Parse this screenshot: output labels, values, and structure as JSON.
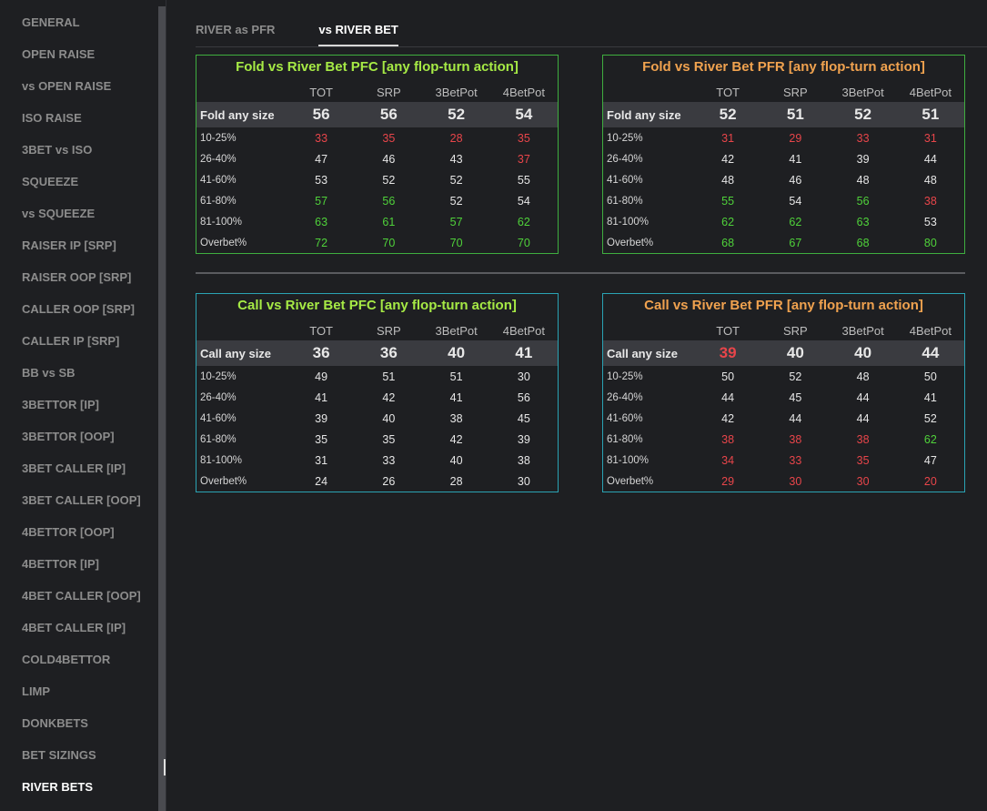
{
  "sidebar": {
    "items": [
      {
        "label": "GENERAL",
        "active": false
      },
      {
        "label": "OPEN RAISE",
        "active": false
      },
      {
        "label": "vs OPEN RAISE",
        "active": false
      },
      {
        "label": "ISO RAISE",
        "active": false
      },
      {
        "label": "3BET vs ISO",
        "active": false
      },
      {
        "label": "SQUEEZE",
        "active": false
      },
      {
        "label": "vs SQUEEZE",
        "active": false
      },
      {
        "label": "RAISER IP [SRP]",
        "active": false
      },
      {
        "label": "RAISER OOP [SRP]",
        "active": false
      },
      {
        "label": "CALLER OOP [SRP]",
        "active": false
      },
      {
        "label": "CALLER IP [SRP]",
        "active": false
      },
      {
        "label": "BB vs SB",
        "active": false
      },
      {
        "label": "3BETTOR [IP]",
        "active": false
      },
      {
        "label": "3BETTOR [OOP]",
        "active": false
      },
      {
        "label": "3BET CALLER [IP]",
        "active": false
      },
      {
        "label": "3BET CALLER [OOP]",
        "active": false
      },
      {
        "label": "4BETTOR [OOP]",
        "active": false
      },
      {
        "label": "4BETTOR [IP]",
        "active": false
      },
      {
        "label": "4BET CALLER [OOP]",
        "active": false
      },
      {
        "label": "4BET CALLER [IP]",
        "active": false
      },
      {
        "label": "COLD4BETTOR",
        "active": false
      },
      {
        "label": "LIMP",
        "active": false
      },
      {
        "label": "DONKBETS",
        "active": false
      },
      {
        "label": "BET SIZINGS",
        "active": false
      },
      {
        "label": "RIVER BETS",
        "active": true
      }
    ]
  },
  "tabs": [
    {
      "label": "RIVER as PFR",
      "active": false
    },
    {
      "label": "vs RIVER BET",
      "active": true
    }
  ],
  "colors": {
    "green_border": "#3fae3f",
    "teal_border": "#2aa3b4",
    "green_title": "#a6ea45",
    "orange_title": "#f0a24f",
    "red_value": "#e8454a",
    "green_value": "#4fd13a"
  },
  "columns": [
    "TOT",
    "SRP",
    "3BetPot",
    "4BetPot"
  ],
  "boxes": [
    {
      "title": "Fold vs River Bet PFC [any flop-turn action]",
      "border": "green",
      "title_color": "green",
      "main": {
        "label": "Fold any size",
        "values": [
          "56",
          "56",
          "52",
          "54"
        ],
        "tones": [
          "",
          "",
          "",
          ""
        ]
      },
      "rows": [
        {
          "label": "10-25%",
          "values": [
            "33",
            "35",
            "28",
            "35"
          ],
          "tones": [
            "red",
            "red",
            "red",
            "red"
          ]
        },
        {
          "label": "26-40%",
          "values": [
            "47",
            "46",
            "43",
            "37"
          ],
          "tones": [
            "",
            "",
            "",
            "red"
          ]
        },
        {
          "label": "41-60%",
          "values": [
            "53",
            "52",
            "52",
            "55"
          ],
          "tones": [
            "",
            "",
            "",
            ""
          ]
        },
        {
          "label": "61-80%",
          "values": [
            "57",
            "56",
            "52",
            "54"
          ],
          "tones": [
            "grn",
            "grn",
            "",
            ""
          ]
        },
        {
          "label": "81-100%",
          "values": [
            "63",
            "61",
            "57",
            "62"
          ],
          "tones": [
            "grn",
            "grn",
            "grn",
            "grn"
          ]
        },
        {
          "label": "Overbet%",
          "values": [
            "72",
            "70",
            "70",
            "70"
          ],
          "tones": [
            "grn",
            "grn",
            "grn",
            "grn"
          ]
        }
      ]
    },
    {
      "title": "Fold vs River Bet PFR [any flop-turn action]",
      "border": "green",
      "title_color": "orange",
      "main": {
        "label": "Fold any size",
        "values": [
          "52",
          "51",
          "52",
          "51"
        ],
        "tones": [
          "",
          "",
          "",
          ""
        ]
      },
      "rows": [
        {
          "label": "10-25%",
          "values": [
            "31",
            "29",
            "33",
            "31"
          ],
          "tones": [
            "red",
            "red",
            "red",
            "red"
          ]
        },
        {
          "label": "26-40%",
          "values": [
            "42",
            "41",
            "39",
            "44"
          ],
          "tones": [
            "",
            "",
            "",
            ""
          ]
        },
        {
          "label": "41-60%",
          "values": [
            "48",
            "46",
            "48",
            "48"
          ],
          "tones": [
            "",
            "",
            "",
            ""
          ]
        },
        {
          "label": "61-80%",
          "values": [
            "55",
            "54",
            "56",
            "38"
          ],
          "tones": [
            "grn",
            "",
            "grn",
            "red"
          ]
        },
        {
          "label": "81-100%",
          "values": [
            "62",
            "62",
            "63",
            "53"
          ],
          "tones": [
            "grn",
            "grn",
            "grn",
            ""
          ]
        },
        {
          "label": "Overbet%",
          "values": [
            "68",
            "67",
            "68",
            "80"
          ],
          "tones": [
            "grn",
            "grn",
            "grn",
            "grn"
          ]
        }
      ]
    },
    {
      "title": "Call vs River Bet PFC [any flop-turn action]",
      "border": "teal",
      "title_color": "green",
      "main": {
        "label": "Call any size",
        "values": [
          "36",
          "36",
          "40",
          "41"
        ],
        "tones": [
          "",
          "",
          "",
          ""
        ]
      },
      "rows": [
        {
          "label": "10-25%",
          "values": [
            "49",
            "51",
            "51",
            "30"
          ],
          "tones": [
            "",
            "",
            "",
            ""
          ]
        },
        {
          "label": "26-40%",
          "values": [
            "41",
            "42",
            "41",
            "56"
          ],
          "tones": [
            "",
            "",
            "",
            ""
          ]
        },
        {
          "label": "41-60%",
          "values": [
            "39",
            "40",
            "38",
            "45"
          ],
          "tones": [
            "",
            "",
            "",
            ""
          ]
        },
        {
          "label": "61-80%",
          "values": [
            "35",
            "35",
            "42",
            "39"
          ],
          "tones": [
            "",
            "",
            "",
            ""
          ]
        },
        {
          "label": "81-100%",
          "values": [
            "31",
            "33",
            "40",
            "38"
          ],
          "tones": [
            "",
            "",
            "",
            ""
          ]
        },
        {
          "label": "Overbet%",
          "values": [
            "24",
            "26",
            "28",
            "30"
          ],
          "tones": [
            "",
            "",
            "",
            ""
          ]
        }
      ]
    },
    {
      "title": "Call vs River Bet PFR [any flop-turn action]",
      "border": "teal",
      "title_color": "orange",
      "main": {
        "label": "Call any size",
        "values": [
          "39",
          "40",
          "40",
          "44"
        ],
        "tones": [
          "red",
          "",
          "",
          ""
        ]
      },
      "rows": [
        {
          "label": "10-25%",
          "values": [
            "50",
            "52",
            "48",
            "50"
          ],
          "tones": [
            "",
            "",
            "",
            ""
          ]
        },
        {
          "label": "26-40%",
          "values": [
            "44",
            "45",
            "44",
            "41"
          ],
          "tones": [
            "",
            "",
            "",
            ""
          ]
        },
        {
          "label": "41-60%",
          "values": [
            "42",
            "44",
            "44",
            "52"
          ],
          "tones": [
            "",
            "",
            "",
            ""
          ]
        },
        {
          "label": "61-80%",
          "values": [
            "38",
            "38",
            "38",
            "62"
          ],
          "tones": [
            "red",
            "red",
            "red",
            "grn"
          ]
        },
        {
          "label": "81-100%",
          "values": [
            "34",
            "33",
            "35",
            "47"
          ],
          "tones": [
            "red",
            "red",
            "red",
            ""
          ]
        },
        {
          "label": "Overbet%",
          "values": [
            "29",
            "30",
            "30",
            "20"
          ],
          "tones": [
            "red",
            "red",
            "red",
            "red"
          ]
        }
      ]
    }
  ]
}
